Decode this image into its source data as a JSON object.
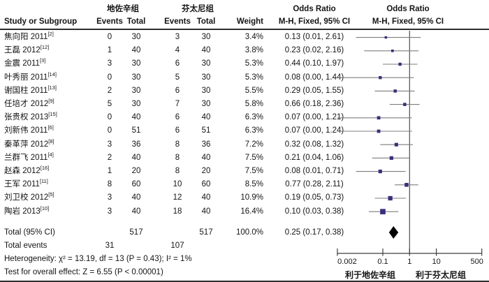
{
  "header": {
    "group1": "地佐辛组",
    "group2": "芬太尼组",
    "odds_ratio": "Odds Ratio",
    "method": "M-H, Fixed, 95% CI",
    "study": "Study or Subgroup",
    "events": "Events",
    "total": "Total",
    "weight": "Weight"
  },
  "chart_data": {
    "type": "forest",
    "effect_measure": "Odds Ratio (M-H, Fixed, 95% CI)",
    "x_axis": {
      "scale": "log",
      "ticks": [
        0.002,
        0.1,
        1,
        10,
        500
      ],
      "tick_labels": [
        "0.002",
        "0.1",
        "1",
        "10",
        "500"
      ],
      "range": [
        0.002,
        500
      ]
    },
    "favors_left": "利于地佐辛组",
    "favors_right": "利于芬太尼组",
    "studies": [
      {
        "name": "焦向阳 2011",
        "ref": "[2]",
        "e1": 0,
        "t1": 30,
        "e2": 3,
        "t2": 30,
        "weight_pct": 3.4,
        "weight_text": "3.4%",
        "or": 0.13,
        "lo": 0.01,
        "hi": 2.61,
        "ci_text": "0.13 (0.01, 2.61)"
      },
      {
        "name": "王磊 2012",
        "ref": "[12]",
        "e1": 1,
        "t1": 40,
        "e2": 4,
        "t2": 40,
        "weight_pct": 3.8,
        "weight_text": "3.8%",
        "or": 0.23,
        "lo": 0.02,
        "hi": 2.16,
        "ci_text": "0.23 (0.02, 2.16)"
      },
      {
        "name": "金震 2011",
        "ref": "[3]",
        "e1": 3,
        "t1": 30,
        "e2": 6,
        "t2": 30,
        "weight_pct": 5.3,
        "weight_text": "5.3%",
        "or": 0.44,
        "lo": 0.1,
        "hi": 1.97,
        "ci_text": "0.44 (0.10, 1.97)"
      },
      {
        "name": "叶秀丽 2011",
        "ref": "[14]",
        "e1": 0,
        "t1": 30,
        "e2": 5,
        "t2": 30,
        "weight_pct": 5.3,
        "weight_text": "5.3%",
        "or": 0.08,
        "lo": 0.0,
        "hi": 1.44,
        "ci_text": "0.08 (0.00, 1.44)"
      },
      {
        "name": "谢国柱 2011",
        "ref": "[13]",
        "e1": 2,
        "t1": 30,
        "e2": 6,
        "t2": 30,
        "weight_pct": 5.5,
        "weight_text": "5.5%",
        "or": 0.29,
        "lo": 0.05,
        "hi": 1.55,
        "ci_text": "0.29 (0.05, 1.55)"
      },
      {
        "name": "任培才 2012",
        "ref": "[9]",
        "e1": 5,
        "t1": 30,
        "e2": 7,
        "t2": 30,
        "weight_pct": 5.8,
        "weight_text": "5.8%",
        "or": 0.66,
        "lo": 0.18,
        "hi": 2.36,
        "ci_text": "0.66 (0.18, 2.36)"
      },
      {
        "name": "张贵权 2013",
        "ref": "[15]",
        "e1": 0,
        "t1": 40,
        "e2": 6,
        "t2": 40,
        "weight_pct": 6.3,
        "weight_text": "6.3%",
        "or": 0.07,
        "lo": 0.0,
        "hi": 1.21,
        "ci_text": "0.07 (0.00, 1.21)"
      },
      {
        "name": "刘新伟 2011",
        "ref": "[6]",
        "e1": 0,
        "t1": 51,
        "e2": 6,
        "t2": 51,
        "weight_pct": 6.3,
        "weight_text": "6.3%",
        "or": 0.07,
        "lo": 0.0,
        "hi": 1.24,
        "ci_text": "0.07 (0.00, 1.24)"
      },
      {
        "name": "秦革萍 2012",
        "ref": "[8]",
        "e1": 3,
        "t1": 36,
        "e2": 8,
        "t2": 36,
        "weight_pct": 7.2,
        "weight_text": "7.2%",
        "or": 0.32,
        "lo": 0.08,
        "hi": 1.32,
        "ci_text": "0.32 (0.08, 1.32)"
      },
      {
        "name": "兰群飞 2011",
        "ref": "[4]",
        "e1": 2,
        "t1": 40,
        "e2": 8,
        "t2": 40,
        "weight_pct": 7.5,
        "weight_text": "7.5%",
        "or": 0.21,
        "lo": 0.04,
        "hi": 1.06,
        "ci_text": "0.21 (0.04, 1.06)"
      },
      {
        "name": "赵森 2012",
        "ref": "[16]",
        "e1": 1,
        "t1": 20,
        "e2": 8,
        "t2": 20,
        "weight_pct": 7.5,
        "weight_text": "7.5%",
        "or": 0.08,
        "lo": 0.01,
        "hi": 0.71,
        "ci_text": "0.08 (0.01, 0.71)"
      },
      {
        "name": "王军 2011",
        "ref": "[11]",
        "e1": 8,
        "t1": 60,
        "e2": 10,
        "t2": 60,
        "weight_pct": 8.5,
        "weight_text": "8.5%",
        "or": 0.77,
        "lo": 0.28,
        "hi": 2.11,
        "ci_text": "0.77 (0.28, 2.11)"
      },
      {
        "name": "刘卫校 2012",
        "ref": "[5]",
        "e1": 3,
        "t1": 40,
        "e2": 12,
        "t2": 40,
        "weight_pct": 10.9,
        "weight_text": "10.9%",
        "or": 0.19,
        "lo": 0.05,
        "hi": 0.73,
        "ci_text": "0.19 (0.05, 0.73)"
      },
      {
        "name": "陶岩 2013",
        "ref": "[10]",
        "e1": 3,
        "t1": 40,
        "e2": 18,
        "t2": 40,
        "weight_pct": 16.4,
        "weight_text": "16.4%",
        "or": 0.1,
        "lo": 0.03,
        "hi": 0.38,
        "ci_text": "0.10 (0.03, 0.38)"
      }
    ],
    "total": {
      "label": "Total (95% CI)",
      "t1": "517",
      "t2": "517",
      "weight_text": "100.0%",
      "or": 0.25,
      "lo": 0.17,
      "hi": 0.38,
      "ci_text": "0.25 (0.17, 0.38)"
    },
    "total_events": {
      "label": "Total events",
      "e1": "31",
      "e2": "107"
    },
    "heterogeneity": "Heterogeneity: χ² = 13.19, df = 13 (P = 0.43); I² = 1%",
    "overall_effect": "Test for overall effect: Z = 6.55 (P < 0.00001)"
  },
  "colors": {
    "marker": "#39307a",
    "ci_line": "#7d7d7d",
    "diamond": "#000000",
    "axis": "#3f3f3f",
    "text": "#141414"
  }
}
